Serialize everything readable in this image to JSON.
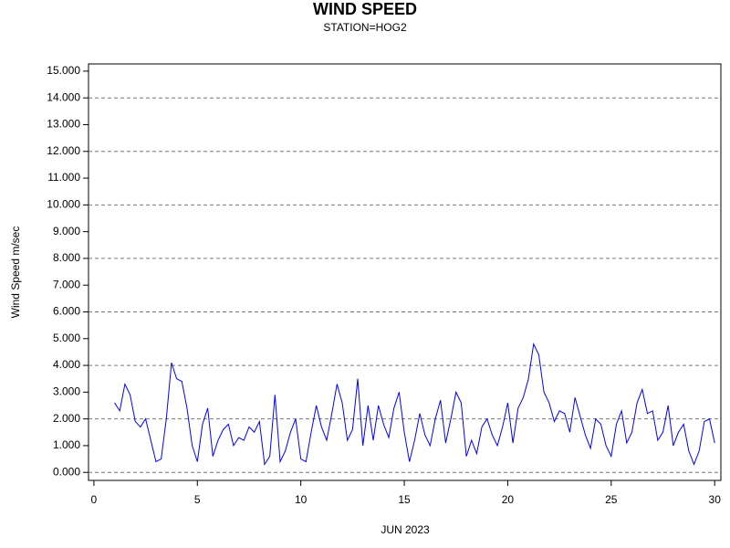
{
  "chart_data": {
    "type": "line",
    "title": "WIND SPEED",
    "subtitle": "STATION=HOG2",
    "x_label": "JUN 2023",
    "y_label": "Wind Speed m/sec",
    "x": [
      1,
      1.25,
      1.5,
      1.75,
      2,
      2.25,
      2.5,
      2.75,
      3,
      3.25,
      3.5,
      3.75,
      4,
      4.25,
      4.5,
      4.75,
      5,
      5.25,
      5.5,
      5.75,
      6,
      6.25,
      6.5,
      6.75,
      7,
      7.25,
      7.5,
      7.75,
      8,
      8.25,
      8.5,
      8.75,
      9,
      9.25,
      9.5,
      9.75,
      10,
      10.25,
      10.5,
      10.75,
      11,
      11.25,
      11.5,
      11.75,
      12,
      12.25,
      12.5,
      12.75,
      13,
      13.25,
      13.5,
      13.75,
      14,
      14.25,
      14.5,
      14.75,
      15,
      15.25,
      15.5,
      15.75,
      16,
      16.25,
      16.5,
      16.75,
      17,
      17.25,
      17.5,
      17.75,
      18,
      18.25,
      18.5,
      18.75,
      19,
      19.25,
      19.5,
      19.75,
      20,
      20.25,
      20.5,
      20.75,
      21,
      21.25,
      21.5,
      21.75,
      22,
      22.25,
      22.5,
      22.75,
      23,
      23.25,
      23.5,
      23.75,
      24,
      24.25,
      24.5,
      24.75,
      25,
      25.25,
      25.5,
      25.75,
      26,
      26.25,
      26.5,
      26.75,
      27,
      27.25,
      27.5,
      27.75,
      28,
      28.25,
      28.5,
      28.75,
      29,
      29.25,
      29.5,
      29.75,
      30
    ],
    "series": [
      {
        "name": "Wind Speed",
        "color": "#0000ff",
        "values": [
          2.6,
          2.3,
          3.3,
          2.9,
          1.9,
          1.7,
          2.0,
          1.2,
          0.4,
          0.5,
          2.0,
          4.1,
          3.5,
          3.4,
          2.4,
          1.0,
          0.4,
          1.8,
          2.4,
          0.6,
          1.2,
          1.6,
          1.8,
          1.0,
          1.3,
          1.2,
          1.7,
          1.5,
          1.9,
          0.3,
          0.6,
          2.9,
          0.4,
          0.8,
          1.5,
          2.0,
          0.5,
          0.4,
          1.5,
          2.5,
          1.7,
          1.2,
          2.2,
          3.3,
          2.6,
          1.2,
          1.6,
          3.5,
          1.0,
          2.5,
          1.2,
          2.5,
          1.8,
          1.3,
          2.4,
          3.0,
          1.5,
          0.4,
          1.2,
          2.2,
          1.4,
          1.0,
          2.0,
          2.7,
          1.1,
          2.0,
          3.0,
          2.6,
          0.6,
          1.2,
          0.7,
          1.7,
          2.0,
          1.4,
          1.0,
          1.7,
          2.6,
          1.1,
          2.4,
          2.8,
          3.5,
          4.8,
          4.4,
          3.0,
          2.6,
          1.9,
          2.3,
          2.2,
          1.5,
          2.8,
          2.1,
          1.4,
          0.9,
          2.0,
          1.8,
          1.0,
          0.6,
          1.8,
          2.3,
          1.1,
          1.5,
          2.6,
          3.1,
          2.2,
          2.3,
          1.2,
          1.5,
          2.5,
          1.0,
          1.5,
          1.8,
          0.8,
          0.3,
          0.8,
          1.9,
          2.0,
          1.1
        ]
      }
    ],
    "xlim": [
      -0.26,
      30.3
    ],
    "xticks": [
      0,
      5,
      10,
      15,
      20,
      25,
      30
    ],
    "ylim": [
      -0.3,
      15.27
    ],
    "yticks": [
      {
        "value": 0,
        "label": "0.000"
      },
      {
        "value": 1,
        "label": "1.000"
      },
      {
        "value": 2,
        "label": "2.000"
      },
      {
        "value": 3,
        "label": "3.000"
      },
      {
        "value": 4,
        "label": "4.000"
      },
      {
        "value": 5,
        "label": "5.000"
      },
      {
        "value": 6,
        "label": "6.000"
      },
      {
        "value": 7,
        "label": "7.000"
      },
      {
        "value": 8,
        "label": "8.000"
      },
      {
        "value": 9,
        "label": "9.000"
      },
      {
        "value": 10,
        "label": "10.000"
      },
      {
        "value": 11,
        "label": "11.000"
      },
      {
        "value": 12,
        "label": "12.000"
      },
      {
        "value": 13,
        "label": "13.000"
      },
      {
        "value": 14,
        "label": "14.000"
      },
      {
        "value": 15,
        "label": "15.000"
      }
    ],
    "ygrid": [
      0,
      2,
      4,
      6,
      8,
      10,
      12,
      14
    ]
  }
}
